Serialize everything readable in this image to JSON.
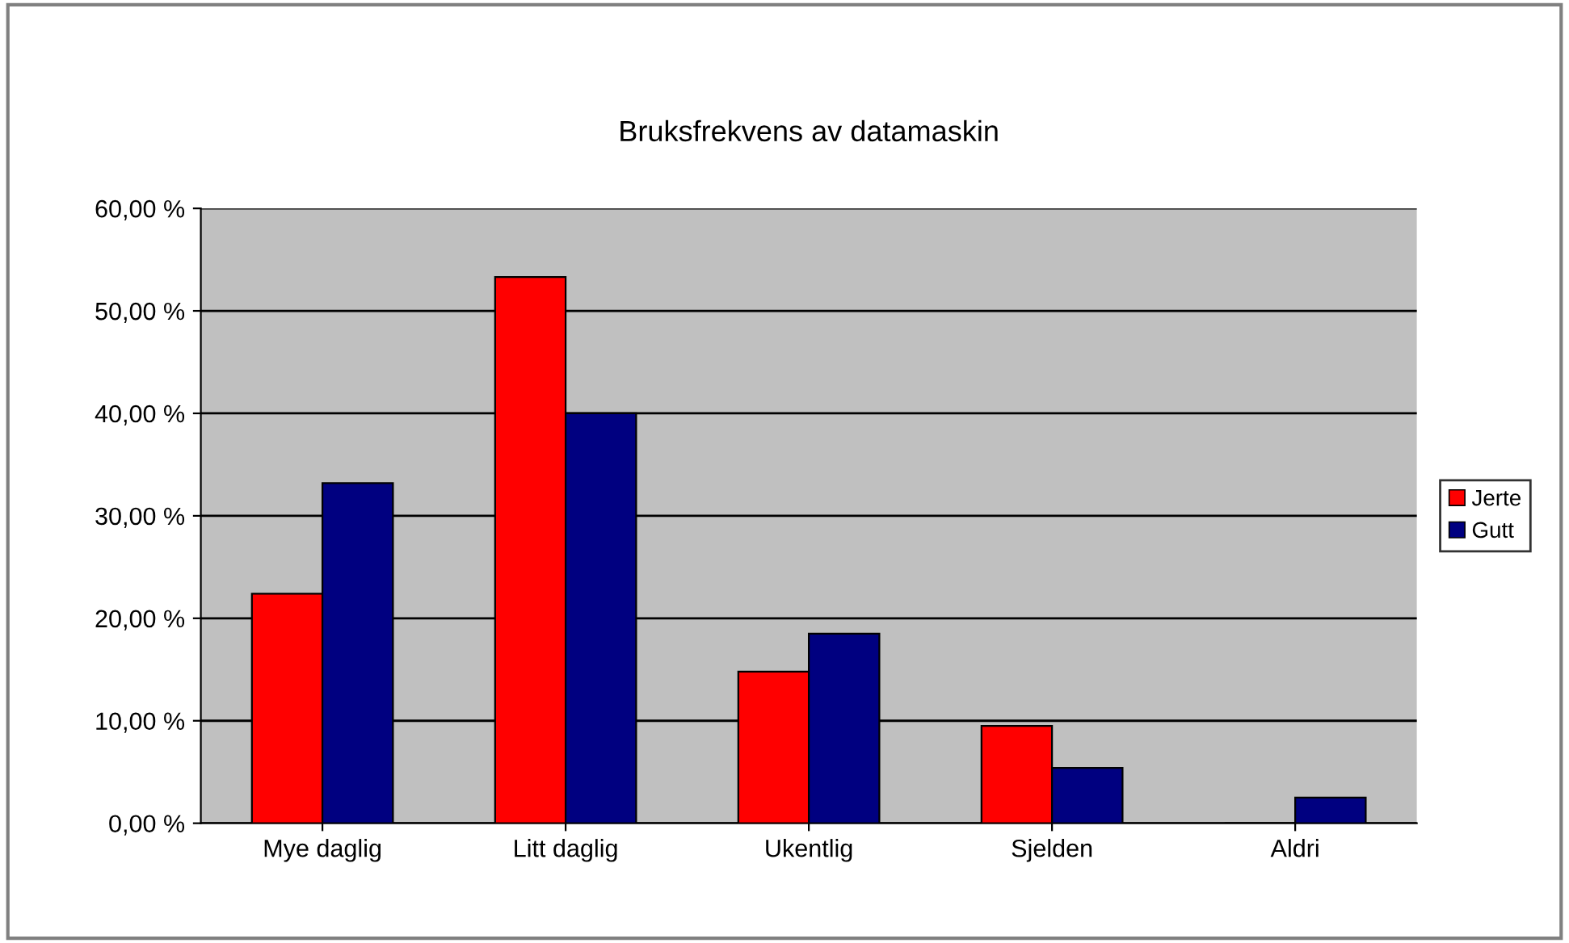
{
  "chart_data": {
    "type": "bar",
    "title": "Bruksfrekvens av datamaskin",
    "categories": [
      "Mye daglig",
      "Litt daglig",
      "Ukentlig",
      "Sjelden",
      "Aldri"
    ],
    "series": [
      {
        "name": "Jerte",
        "color": "#ff0000",
        "values": [
          22.4,
          53.3,
          14.8,
          9.5,
          0
        ]
      },
      {
        "name": "Gutt",
        "color": "#000080",
        "values": [
          33.2,
          40.0,
          18.5,
          5.4,
          2.5
        ]
      }
    ],
    "ylim": [
      0,
      60
    ],
    "yticks": [
      {
        "value": 0,
        "label": "0,00 %"
      },
      {
        "value": 10,
        "label": "10,00 %"
      },
      {
        "value": 20,
        "label": "20,00 %"
      },
      {
        "value": 30,
        "label": "30,00 %"
      },
      {
        "value": 40,
        "label": "40,00 %"
      },
      {
        "value": 50,
        "label": "50,00 %"
      },
      {
        "value": 60,
        "label": "60,00 %"
      }
    ],
    "grid": "y",
    "legend": "right"
  }
}
